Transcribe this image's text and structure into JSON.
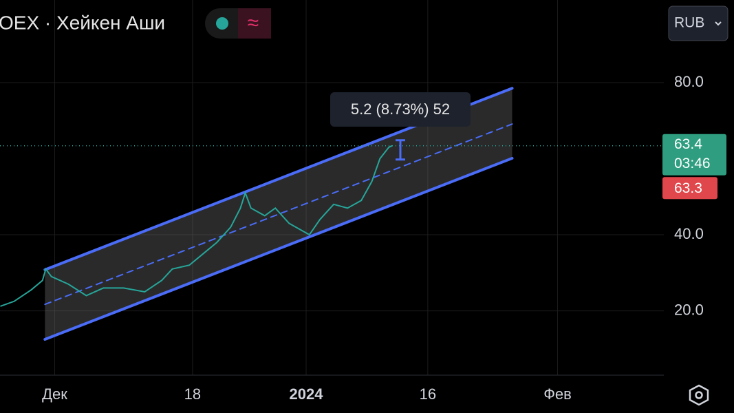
{
  "chart_data": {
    "type": "line",
    "title": "OEX · Хейкен Аши",
    "currency": "RUB",
    "x": [
      -6.7,
      -5.0,
      -2.9,
      -1.5,
      -1.1,
      -0.4,
      1.7,
      3.9,
      6.0,
      8.5,
      11.1,
      13.2,
      14.5,
      16.6,
      18.3,
      20.0,
      21.7,
      22.9,
      23.5,
      24.2,
      25.9,
      27.2,
      28.9,
      31.4,
      32.7,
      34.4,
      36.1,
      37.8,
      39.1,
      40.1,
      41.2,
      41.6
    ],
    "series": [
      {
        "color": "#26a69a",
        "values": [
          21.2,
          22.5,
          25.5,
          28,
          31,
          29,
          27,
          24,
          26,
          26,
          25,
          28,
          31,
          32,
          35,
          38,
          42,
          47,
          51,
          47,
          45,
          47,
          43,
          40,
          44,
          48,
          47,
          49,
          54,
          60,
          63,
          63.4
        ]
      }
    ],
    "channel": {
      "color": "#4a6cf7",
      "x": [
        -1.2,
        56.4
      ],
      "upper": [
        30.8,
        78.5
      ],
      "middle": [
        21.7,
        69.1
      ],
      "lower": [
        12.5,
        60.1
      ]
    },
    "measure_label": "5.2 (8.73%) 52",
    "last_price": 63.4,
    "countdown": "03:46",
    "prev_price": 63.3,
    "xlim": [
      -6.74,
      75.1
    ],
    "ylim": [
      3.1,
      101.7
    ],
    "xticks": [
      {
        "value": 0,
        "label": "Дек"
      },
      {
        "value": 17,
        "label": "18"
      },
      {
        "value": 31,
        "label": "2024"
      },
      {
        "value": 46,
        "label": "16"
      },
      {
        "value": 62,
        "label": "Фев"
      }
    ],
    "yticks": [
      {
        "value": 80,
        "label": "80.0"
      },
      {
        "value": 40,
        "label": "40.0"
      },
      {
        "value": 20,
        "label": "20.0"
      }
    ],
    "grid": true
  }
}
